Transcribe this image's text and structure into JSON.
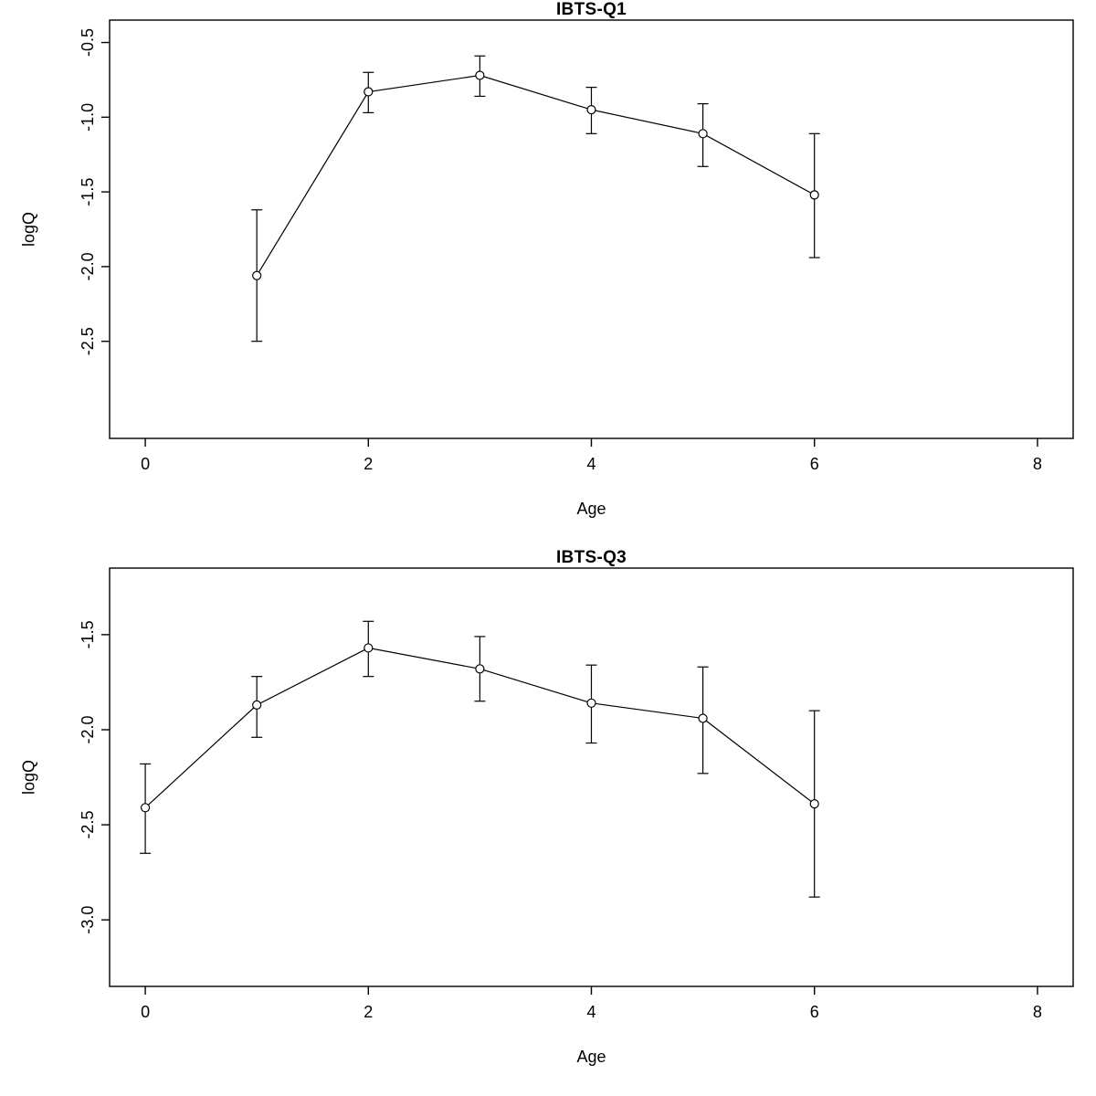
{
  "figure": {
    "background": "#ffffff",
    "foreground": "#000000"
  },
  "chart_data": [
    {
      "type": "line",
      "title": "IBTS-Q1",
      "xlabel": "Age",
      "ylabel": "logQ",
      "marker": "open-circle",
      "color": "#000000",
      "grid": false,
      "legend": "none",
      "error_bars": true,
      "x": [
        1,
        2,
        3,
        4,
        5,
        6
      ],
      "y": [
        -2.06,
        -0.83,
        -0.72,
        -0.95,
        -1.11,
        -1.52
      ],
      "y_lower": [
        -2.5,
        -0.97,
        -0.86,
        -1.11,
        -1.33,
        -1.94
      ],
      "y_upper": [
        -1.62,
        -0.7,
        -0.59,
        -0.8,
        -0.91,
        -1.11
      ],
      "xlim": [
        -0.32,
        8.32
      ],
      "ylim": [
        -3.15,
        -0.35
      ],
      "xticks": [
        0,
        2,
        4,
        6,
        8
      ],
      "yticks": [
        -0.5,
        -1.0,
        -1.5,
        -2.0,
        -2.5
      ],
      "xtick_labels": [
        "0",
        "2",
        "4",
        "6",
        "8"
      ],
      "ytick_labels": [
        "-0.5",
        "-1.0",
        "-1.5",
        "-2.0",
        "-2.5"
      ]
    },
    {
      "type": "line",
      "title": "IBTS-Q3",
      "xlabel": "Age",
      "ylabel": "logQ",
      "marker": "open-circle",
      "color": "#000000",
      "grid": false,
      "legend": "none",
      "error_bars": true,
      "x": [
        0,
        1,
        2,
        3,
        4,
        5,
        6
      ],
      "y": [
        -2.41,
        -1.87,
        -1.57,
        -1.68,
        -1.86,
        -1.94,
        -2.39
      ],
      "y_lower": [
        -2.65,
        -2.04,
        -1.72,
        -1.85,
        -2.07,
        -2.23,
        -2.88
      ],
      "y_upper": [
        -2.18,
        -1.72,
        -1.43,
        -1.51,
        -1.66,
        -1.67,
        -1.9
      ],
      "xlim": [
        -0.32,
        8.32
      ],
      "ylim": [
        -3.35,
        -1.15
      ],
      "xticks": [
        0,
        2,
        4,
        6,
        8
      ],
      "yticks": [
        -1.5,
        -2.0,
        -2.5,
        -3.0
      ],
      "xtick_labels": [
        "0",
        "2",
        "4",
        "6",
        "8"
      ],
      "ytick_labels": [
        "-1.5",
        "-2.0",
        "-2.5",
        "-3.0"
      ]
    }
  ]
}
